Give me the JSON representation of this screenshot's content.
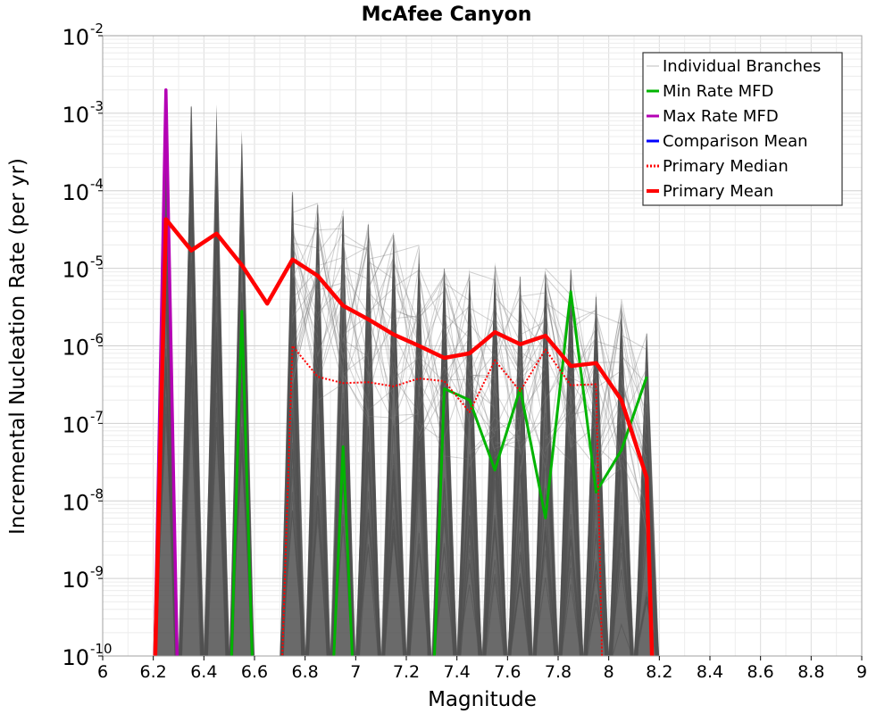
{
  "chart_data": {
    "type": "line",
    "title": "McAfee Canyon",
    "xlabel": "Magnitude",
    "ylabel": "Incremental Nucleation Rate (per yr)",
    "xlim": [
      6,
      9
    ],
    "ylim_exponents": [
      -10,
      -2
    ],
    "y_scale": "log",
    "grid": true,
    "legend_position": "top-right",
    "x_ticks": [
      "6",
      "6.2",
      "6.4",
      "6.6",
      "6.8",
      "7",
      "7.2",
      "7.4",
      "7.6",
      "7.8",
      "8",
      "8.2",
      "8.4",
      "8.6",
      "8.8",
      "9"
    ],
    "y_tick_exponents": [
      "-10",
      "-9",
      "-8",
      "-7",
      "-6",
      "-5",
      "-4",
      "-3",
      "-2"
    ],
    "legend": [
      {
        "key": "individual",
        "label": "Individual Branches",
        "color": "#c8c8c8",
        "style": "solid"
      },
      {
        "key": "min",
        "label": "Min Rate MFD",
        "color": "#00b400",
        "style": "solid"
      },
      {
        "key": "max",
        "label": "Max Rate MFD",
        "color": "#b400b4",
        "style": "solid"
      },
      {
        "key": "comparison",
        "label": "Comparison Mean",
        "color": "#0000ff",
        "style": "solid"
      },
      {
        "key": "median",
        "label": " Primary Median",
        "color": "#ff0000",
        "style": "dotted"
      },
      {
        "key": "mean",
        "label": "Primary Mean",
        "color": "#ff0000",
        "style": "solid"
      }
    ],
    "series": [
      {
        "key": "individual_envelope",
        "color": "#555555",
        "x": [
          6.25,
          6.35,
          6.45,
          6.55,
          6.75,
          6.85,
          6.95,
          7.05,
          7.15,
          7.25,
          7.35,
          7.45,
          7.55,
          7.65,
          7.75,
          7.85,
          7.95,
          8.05,
          8.15
        ],
        "y": [
          0.002,
          0.0013,
          0.0013,
          0.0006,
          0.0001,
          7e-05,
          6e-05,
          4e-05,
          3e-05,
          2e-05,
          1e-05,
          1e-05,
          1.2e-05,
          8e-06,
          1e-05,
          1e-05,
          5e-06,
          4e-06,
          1.5e-06
        ]
      },
      {
        "key": "min",
        "color": "#00b400",
        "x": [
          6.5,
          6.55,
          6.6,
          6.9,
          6.95,
          7.0,
          7.3,
          7.35,
          7.45,
          7.55,
          7.65,
          7.75,
          7.85,
          7.95,
          8.05,
          8.15
        ],
        "y": [
          1e-10,
          2.8e-06,
          1e-10,
          1e-10,
          5e-08,
          1e-10,
          1e-10,
          2.8e-07,
          2e-07,
          2.5e-08,
          2.8e-07,
          6e-09,
          5e-06,
          1.3e-08,
          4.5e-08,
          4e-07
        ]
      },
      {
        "key": "max",
        "color": "#b400b4",
        "x": [
          6.2,
          6.25,
          6.3
        ],
        "y": [
          1e-10,
          0.002,
          1e-10
        ]
      },
      {
        "key": "median",
        "color": "#ff0000",
        "x": [
          6.7,
          6.75,
          6.85,
          6.95,
          7.05,
          7.15,
          7.25,
          7.35,
          7.45,
          7.55,
          7.65,
          7.75,
          7.85,
          7.95,
          7.98
        ],
        "y": [
          1e-10,
          1e-06,
          4e-07,
          3.3e-07,
          3.4e-07,
          3e-07,
          3.8e-07,
          3.5e-07,
          1.4e-07,
          6.5e-07,
          2.6e-07,
          9e-07,
          3.1e-07,
          3.2e-07,
          1e-10
        ]
      },
      {
        "key": "mean",
        "color": "#ff0000",
        "x": [
          6.2,
          6.25,
          6.35,
          6.45,
          6.55,
          6.65,
          6.75,
          6.85,
          6.95,
          7.05,
          7.15,
          7.25,
          7.35,
          7.45,
          7.55,
          7.65,
          7.75,
          7.85,
          7.95,
          8.05,
          8.15,
          8.18
        ],
        "y": [
          1e-10,
          4.3e-05,
          1.7e-05,
          2.8e-05,
          1.1e-05,
          3.5e-06,
          1.3e-05,
          8e-06,
          3.3e-06,
          2.2e-06,
          1.4e-06,
          1e-06,
          7e-07,
          8e-07,
          1.5e-06,
          1.05e-06,
          1.35e-06,
          5.5e-07,
          6e-07,
          2e-07,
          2e-08,
          1e-10
        ]
      }
    ]
  }
}
